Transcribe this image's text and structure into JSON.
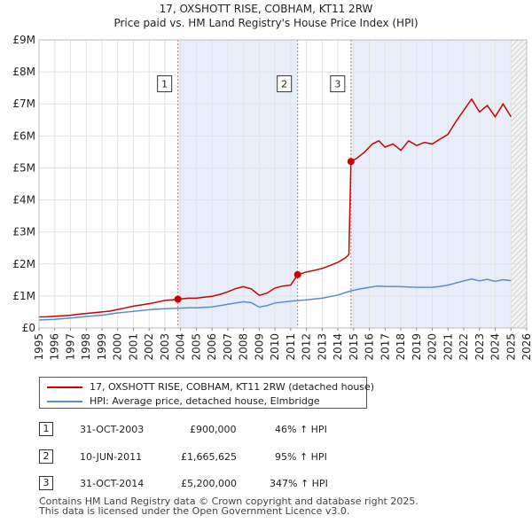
{
  "chart_data": {
    "type": "line",
    "title": "17, OXSHOTT RISE, COBHAM, KT11 2RW",
    "subtitle": "Price paid vs. HM Land Registry's House Price Index (HPI)",
    "xlim": [
      1995,
      2026
    ],
    "ylim": [
      0,
      9000000
    ],
    "x_ticks": [
      1995,
      1996,
      1997,
      1998,
      1999,
      2000,
      2001,
      2002,
      2003,
      2004,
      2005,
      2006,
      2007,
      2008,
      2009,
      2010,
      2011,
      2012,
      2013,
      2014,
      2015,
      2016,
      2017,
      2018,
      2019,
      2020,
      2021,
      2022,
      2023,
      2024,
      2025,
      2026
    ],
    "y_ticks": [
      {
        "value": 0,
        "label": "£0"
      },
      {
        "value": 1000000,
        "label": "£1M"
      },
      {
        "value": 2000000,
        "label": "£2M"
      },
      {
        "value": 3000000,
        "label": "£3M"
      },
      {
        "value": 4000000,
        "label": "£4M"
      },
      {
        "value": 5000000,
        "label": "£5M"
      },
      {
        "value": 6000000,
        "label": "£6M"
      },
      {
        "value": 7000000,
        "label": "£7M"
      },
      {
        "value": 8000000,
        "label": "£8M"
      },
      {
        "value": 9000000,
        "label": "£9M"
      }
    ],
    "highlight_spans": [
      [
        2003.83,
        2011.44
      ],
      [
        2014.83,
        2025.0
      ]
    ],
    "future_start": 2025.0,
    "series": [
      {
        "name": "17, OXSHOTT RISE, COBHAM, KT11 2RW (detached house)",
        "color": "#cc0000",
        "points": [
          [
            1995.0,
            345000
          ],
          [
            1995.5,
            350000
          ],
          [
            1996.0,
            365000
          ],
          [
            1996.5,
            380000
          ],
          [
            1997.0,
            400000
          ],
          [
            1997.5,
            430000
          ],
          [
            1998.0,
            455000
          ],
          [
            1998.5,
            480000
          ],
          [
            1999.0,
            500000
          ],
          [
            1999.5,
            525000
          ],
          [
            2000.0,
            580000
          ],
          [
            2000.5,
            630000
          ],
          [
            2001.0,
            680000
          ],
          [
            2001.5,
            720000
          ],
          [
            2002.0,
            760000
          ],
          [
            2002.5,
            810000
          ],
          [
            2003.0,
            860000
          ],
          [
            2003.5,
            880000
          ],
          [
            2003.83,
            900000
          ],
          [
            2004.5,
            930000
          ],
          [
            2005.0,
            930000
          ],
          [
            2005.5,
            960000
          ],
          [
            2006.0,
            990000
          ],
          [
            2006.5,
            1050000
          ],
          [
            2007.0,
            1130000
          ],
          [
            2007.5,
            1230000
          ],
          [
            2008.0,
            1290000
          ],
          [
            2008.5,
            1220000
          ],
          [
            2009.0,
            1020000
          ],
          [
            2009.5,
            1090000
          ],
          [
            2010.0,
            1250000
          ],
          [
            2010.5,
            1310000
          ],
          [
            2011.0,
            1340000
          ],
          [
            2011.44,
            1665625
          ],
          [
            2012.0,
            1750000
          ],
          [
            2012.5,
            1800000
          ],
          [
            2013.0,
            1860000
          ],
          [
            2013.5,
            1950000
          ],
          [
            2014.0,
            2050000
          ],
          [
            2014.5,
            2200000
          ],
          [
            2014.7,
            2300000
          ],
          [
            2014.83,
            5200000
          ],
          [
            2015.2,
            5300000
          ],
          [
            2015.7,
            5500000
          ],
          [
            2016.2,
            5750000
          ],
          [
            2016.6,
            5850000
          ],
          [
            2017.0,
            5650000
          ],
          [
            2017.5,
            5750000
          ],
          [
            2018.0,
            5550000
          ],
          [
            2018.5,
            5850000
          ],
          [
            2019.0,
            5700000
          ],
          [
            2019.5,
            5800000
          ],
          [
            2020.0,
            5750000
          ],
          [
            2020.5,
            5900000
          ],
          [
            2021.0,
            6050000
          ],
          [
            2021.5,
            6450000
          ],
          [
            2022.0,
            6800000
          ],
          [
            2022.5,
            7150000
          ],
          [
            2023.0,
            6750000
          ],
          [
            2023.5,
            6950000
          ],
          [
            2024.0,
            6600000
          ],
          [
            2024.5,
            7000000
          ],
          [
            2025.0,
            6600000
          ]
        ],
        "markers": [
          [
            2003.83,
            900000
          ],
          [
            2011.44,
            1665625
          ],
          [
            2014.83,
            5200000
          ]
        ]
      },
      {
        "name": "HPI: Average price, detached house, Elmbridge",
        "color": "#5b8bd0",
        "points": [
          [
            1995.0,
            250000
          ],
          [
            1996.0,
            270000
          ],
          [
            1997.0,
            310000
          ],
          [
            1998.0,
            360000
          ],
          [
            1999.0,
            400000
          ],
          [
            2000.0,
            470000
          ],
          [
            2001.0,
            520000
          ],
          [
            2002.0,
            570000
          ],
          [
            2003.0,
            600000
          ],
          [
            2003.83,
            615000
          ],
          [
            2004.5,
            630000
          ],
          [
            2005.0,
            630000
          ],
          [
            2006.0,
            660000
          ],
          [
            2007.0,
            740000
          ],
          [
            2008.0,
            820000
          ],
          [
            2008.5,
            790000
          ],
          [
            2009.0,
            650000
          ],
          [
            2009.5,
            700000
          ],
          [
            2010.0,
            780000
          ],
          [
            2011.0,
            840000
          ],
          [
            2011.44,
            855000
          ],
          [
            2012.0,
            880000
          ],
          [
            2013.0,
            930000
          ],
          [
            2014.0,
            1030000
          ],
          [
            2014.83,
            1160000
          ],
          [
            2015.5,
            1230000
          ],
          [
            2016.5,
            1310000
          ],
          [
            2017.0,
            1300000
          ],
          [
            2018.0,
            1290000
          ],
          [
            2019.0,
            1270000
          ],
          [
            2020.0,
            1270000
          ],
          [
            2020.5,
            1300000
          ],
          [
            2021.0,
            1340000
          ],
          [
            2022.0,
            1470000
          ],
          [
            2022.5,
            1530000
          ],
          [
            2023.0,
            1470000
          ],
          [
            2023.5,
            1520000
          ],
          [
            2024.0,
            1460000
          ],
          [
            2024.5,
            1510000
          ],
          [
            2025.0,
            1480000
          ]
        ]
      }
    ],
    "annotations": [
      {
        "label": "1",
        "x": 2003.83,
        "y_box": 7600000
      },
      {
        "label": "2",
        "x": 2011.44,
        "y_box": 7600000
      },
      {
        "label": "3",
        "x": 2014.83,
        "y_box": 7600000
      }
    ]
  },
  "legend": {
    "items": [
      {
        "label": "17, OXSHOTT RISE, COBHAM, KT11 2RW (detached house)",
        "color": "#cc0000"
      },
      {
        "label": "HPI: Average price, detached house, Elmbridge",
        "color": "#5b8bd0"
      }
    ]
  },
  "transactions": [
    {
      "num": "1",
      "date": "31-OCT-2003",
      "price": "£900,000",
      "hpi": "46% ↑ HPI"
    },
    {
      "num": "2",
      "date": "10-JUN-2011",
      "price": "£1,665,625",
      "hpi": "95% ↑ HPI"
    },
    {
      "num": "3",
      "date": "31-OCT-2014",
      "price": "£5,200,000",
      "hpi": "347% ↑ HPI"
    }
  ],
  "footer": {
    "line1": "Contains HM Land Registry data © Crown copyright and database right 2025.",
    "line2": "This data is licensed under the Open Government Licence v3.0."
  }
}
